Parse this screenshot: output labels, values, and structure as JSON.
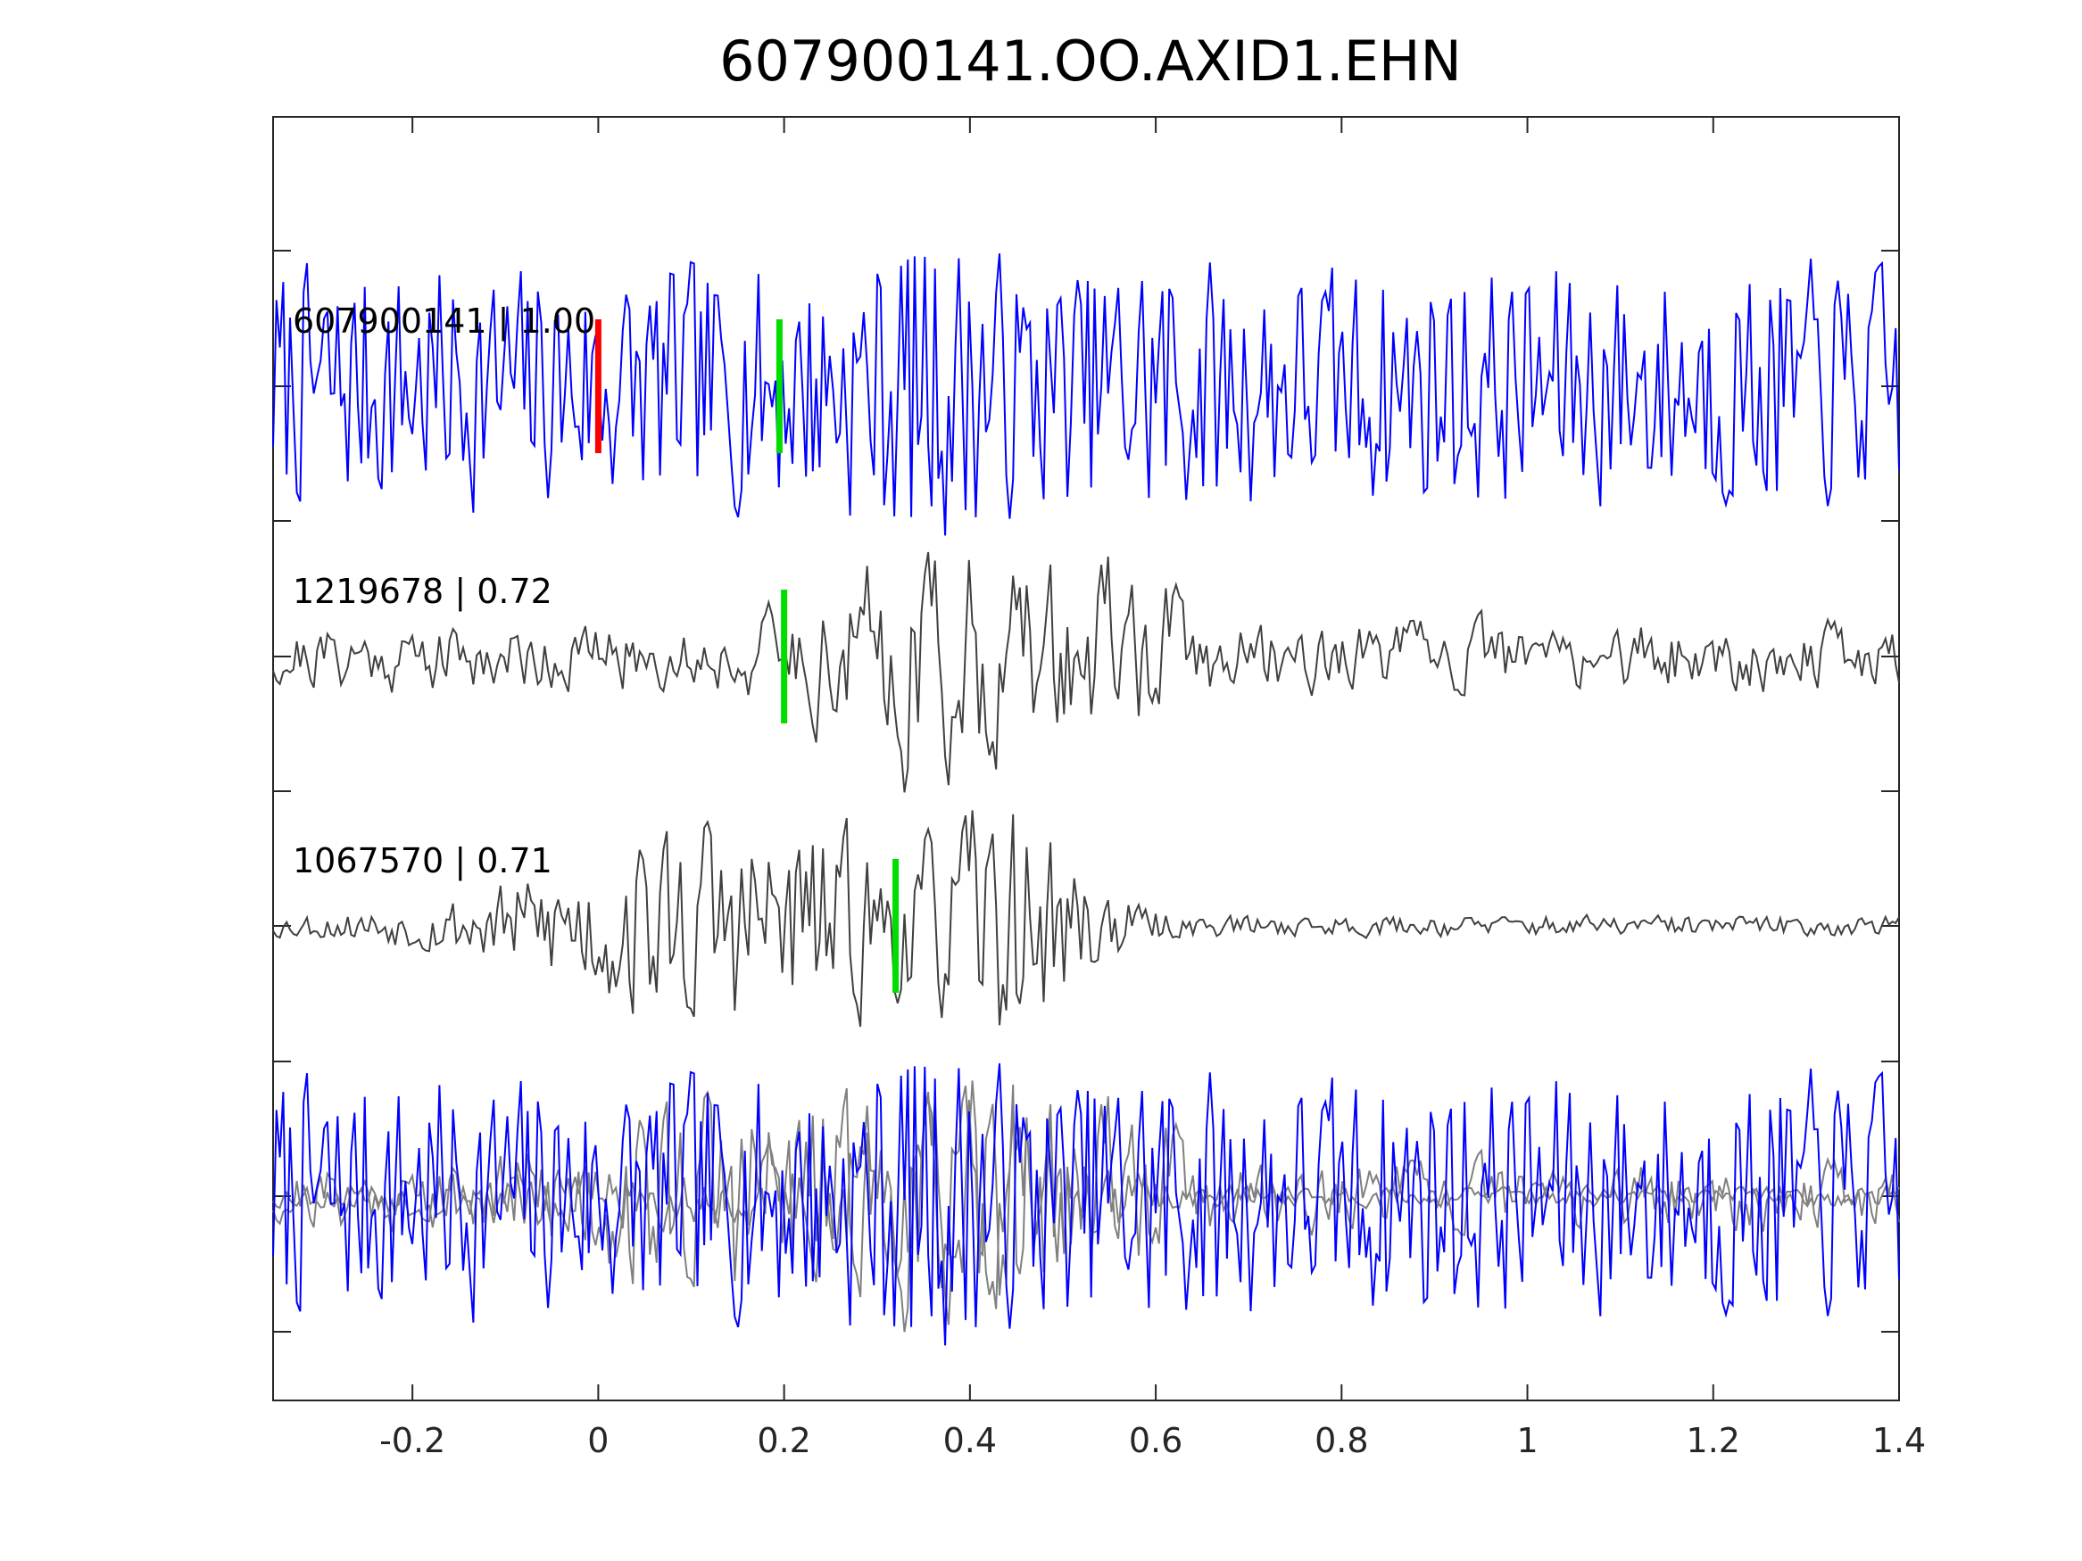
{
  "chart_data": {
    "type": "line",
    "title": "607900141.OO.AXID1.EHN",
    "xlabel": "",
    "ylabel": "",
    "xlim": [
      -0.35,
      1.4
    ],
    "x_ticks": [
      -0.2,
      0,
      0.2,
      0.4,
      0.6,
      0.8,
      1,
      1.2,
      1.4
    ],
    "x_tick_labels": [
      "-0.2",
      "0",
      "0.2",
      "0.4",
      "0.6",
      "0.8",
      "1",
      "1.2",
      "1.4"
    ],
    "y_ticks_unlabeled": true,
    "grid": false,
    "legend": "none",
    "colors": {
      "target": "#0000ff",
      "template": "#404040",
      "overlay_template": "#808080",
      "p_pick": "#ff0000",
      "s_pick": "#00dd00",
      "axes": "#262626"
    },
    "traces": [
      {
        "label": "607900141 | 1.00",
        "role": "target",
        "p_pick_time": 0.0,
        "s_pick_time": 0.195,
        "character": "broadband noise, amplitude ~±1"
      },
      {
        "label": "1219678 | 0.72",
        "role": "template",
        "s_pick_time": 0.2,
        "character": "small noise with large phase near 0.33-0.58 s"
      },
      {
        "label": "1067570 | 0.71",
        "role": "template",
        "s_pick_time": 0.32,
        "character": "quiet with burst near -0.05-0.35 s and peak near 0.34 s"
      },
      {
        "label": "",
        "role": "overlay",
        "character": "all three traces superimposed"
      }
    ]
  }
}
